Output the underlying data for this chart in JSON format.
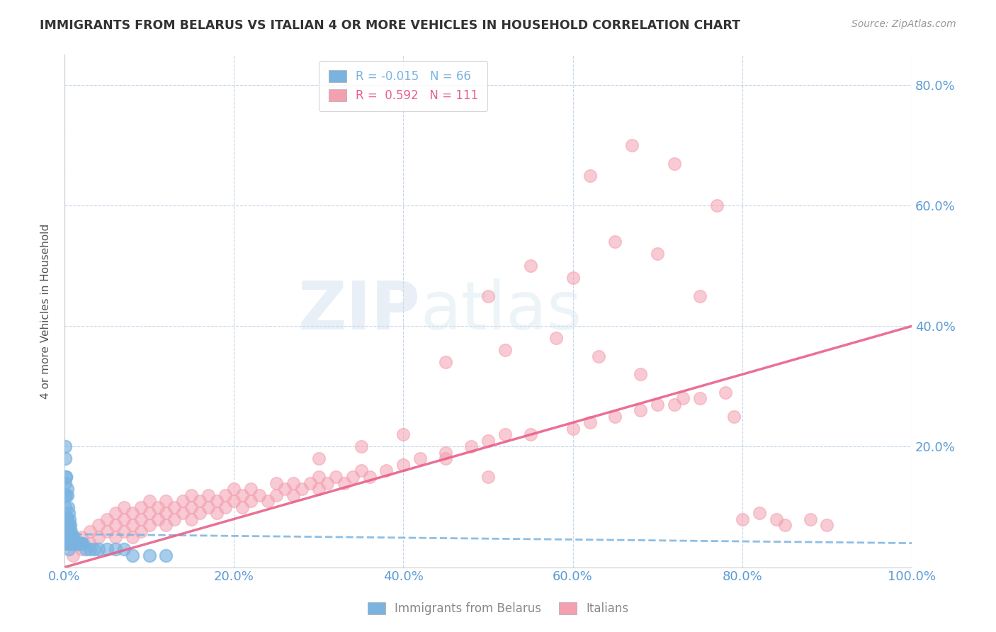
{
  "title": "IMMIGRANTS FROM BELARUS VS ITALIAN 4 OR MORE VEHICLES IN HOUSEHOLD CORRELATION CHART",
  "source": "Source: ZipAtlas.com",
  "ylabel": "4 or more Vehicles in Household",
  "xlim": [
    0.0,
    1.0
  ],
  "ylim": [
    0.0,
    0.85
  ],
  "xtick_labels": [
    "0.0%",
    "20.0%",
    "40.0%",
    "60.0%",
    "80.0%",
    "100.0%"
  ],
  "xtick_vals": [
    0.0,
    0.2,
    0.4,
    0.6,
    0.8,
    1.0
  ],
  "ytick_labels": [
    "20.0%",
    "40.0%",
    "60.0%",
    "80.0%"
  ],
  "ytick_vals": [
    0.2,
    0.4,
    0.6,
    0.8
  ],
  "ytick_color": "#5b9bd5",
  "xtick_color": "#5b9bd5",
  "grid_color": "#b8cce4",
  "background_color": "#ffffff",
  "legend_R_belarus": "-0.015",
  "legend_N_belarus": "66",
  "legend_R_italians": "0.592",
  "legend_N_italians": "111",
  "color_belarus": "#7ab3e0",
  "color_italians": "#f4a0b0",
  "trendline_belarus_color": "#7ab3e0",
  "trendline_italians_color": "#e8608a",
  "watermark_zip": "ZIP",
  "watermark_atlas": "atlas",
  "bel_trend_x": [
    0.0,
    1.0
  ],
  "bel_trend_y": [
    0.055,
    0.04
  ],
  "ital_trend_x": [
    0.0,
    1.0
  ],
  "ital_trend_y": [
    0.0,
    0.4
  ],
  "belarus_x": [
    0.001,
    0.001,
    0.001,
    0.001,
    0.002,
    0.002,
    0.002,
    0.002,
    0.002,
    0.002,
    0.003,
    0.003,
    0.003,
    0.003,
    0.003,
    0.004,
    0.004,
    0.004,
    0.004,
    0.005,
    0.005,
    0.005,
    0.005,
    0.006,
    0.006,
    0.006,
    0.007,
    0.007,
    0.007,
    0.008,
    0.008,
    0.009,
    0.009,
    0.01,
    0.01,
    0.011,
    0.011,
    0.012,
    0.013,
    0.014,
    0.015,
    0.016,
    0.017,
    0.018,
    0.019,
    0.02,
    0.022,
    0.025,
    0.03,
    0.035,
    0.04,
    0.05,
    0.06,
    0.07,
    0.08,
    0.1,
    0.12,
    0.0005,
    0.0005,
    0.0005,
    0.001,
    0.001,
    0.002,
    0.003,
    0.005,
    0.007
  ],
  "belarus_y": [
    0.05,
    0.07,
    0.1,
    0.14,
    0.04,
    0.05,
    0.06,
    0.08,
    0.12,
    0.15,
    0.04,
    0.05,
    0.06,
    0.08,
    0.12,
    0.04,
    0.05,
    0.07,
    0.1,
    0.03,
    0.05,
    0.07,
    0.09,
    0.04,
    0.06,
    0.08,
    0.04,
    0.05,
    0.07,
    0.04,
    0.06,
    0.04,
    0.05,
    0.04,
    0.05,
    0.04,
    0.05,
    0.04,
    0.04,
    0.04,
    0.04,
    0.04,
    0.04,
    0.04,
    0.04,
    0.04,
    0.04,
    0.03,
    0.03,
    0.03,
    0.03,
    0.03,
    0.03,
    0.03,
    0.02,
    0.02,
    0.02,
    0.05,
    0.08,
    0.12,
    0.18,
    0.2,
    0.15,
    0.13,
    0.07,
    0.05
  ],
  "italians_x": [
    0.01,
    0.02,
    0.02,
    0.03,
    0.03,
    0.04,
    0.04,
    0.05,
    0.05,
    0.06,
    0.06,
    0.06,
    0.07,
    0.07,
    0.07,
    0.08,
    0.08,
    0.08,
    0.09,
    0.09,
    0.09,
    0.1,
    0.1,
    0.1,
    0.11,
    0.11,
    0.12,
    0.12,
    0.12,
    0.13,
    0.13,
    0.14,
    0.14,
    0.15,
    0.15,
    0.15,
    0.16,
    0.16,
    0.17,
    0.17,
    0.18,
    0.18,
    0.19,
    0.19,
    0.2,
    0.2,
    0.21,
    0.21,
    0.22,
    0.22,
    0.23,
    0.24,
    0.25,
    0.25,
    0.26,
    0.27,
    0.27,
    0.28,
    0.29,
    0.3,
    0.3,
    0.31,
    0.32,
    0.33,
    0.34,
    0.35,
    0.36,
    0.38,
    0.4,
    0.42,
    0.45,
    0.48,
    0.5,
    0.52,
    0.55,
    0.6,
    0.62,
    0.65,
    0.68,
    0.7,
    0.72,
    0.75,
    0.78,
    0.8,
    0.82,
    0.85,
    0.88,
    0.5,
    0.55,
    0.6,
    0.65,
    0.7,
    0.75,
    0.62,
    0.67,
    0.72,
    0.77,
    0.45,
    0.52,
    0.58,
    0.63,
    0.68,
    0.73,
    0.79,
    0.84,
    0.9,
    0.3,
    0.35,
    0.4,
    0.45,
    0.5
  ],
  "italians_y": [
    0.02,
    0.03,
    0.05,
    0.04,
    0.06,
    0.05,
    0.07,
    0.06,
    0.08,
    0.05,
    0.07,
    0.09,
    0.06,
    0.08,
    0.1,
    0.05,
    0.07,
    0.09,
    0.06,
    0.08,
    0.1,
    0.07,
    0.09,
    0.11,
    0.08,
    0.1,
    0.07,
    0.09,
    0.11,
    0.08,
    0.1,
    0.09,
    0.11,
    0.08,
    0.1,
    0.12,
    0.09,
    0.11,
    0.1,
    0.12,
    0.09,
    0.11,
    0.1,
    0.12,
    0.11,
    0.13,
    0.1,
    0.12,
    0.11,
    0.13,
    0.12,
    0.11,
    0.12,
    0.14,
    0.13,
    0.12,
    0.14,
    0.13,
    0.14,
    0.13,
    0.15,
    0.14,
    0.15,
    0.14,
    0.15,
    0.16,
    0.15,
    0.16,
    0.17,
    0.18,
    0.19,
    0.2,
    0.21,
    0.22,
    0.22,
    0.23,
    0.24,
    0.25,
    0.26,
    0.27,
    0.27,
    0.28,
    0.29,
    0.08,
    0.09,
    0.07,
    0.08,
    0.45,
    0.5,
    0.48,
    0.54,
    0.52,
    0.45,
    0.65,
    0.7,
    0.67,
    0.6,
    0.34,
    0.36,
    0.38,
    0.35,
    0.32,
    0.28,
    0.25,
    0.08,
    0.07,
    0.18,
    0.2,
    0.22,
    0.18,
    0.15
  ]
}
